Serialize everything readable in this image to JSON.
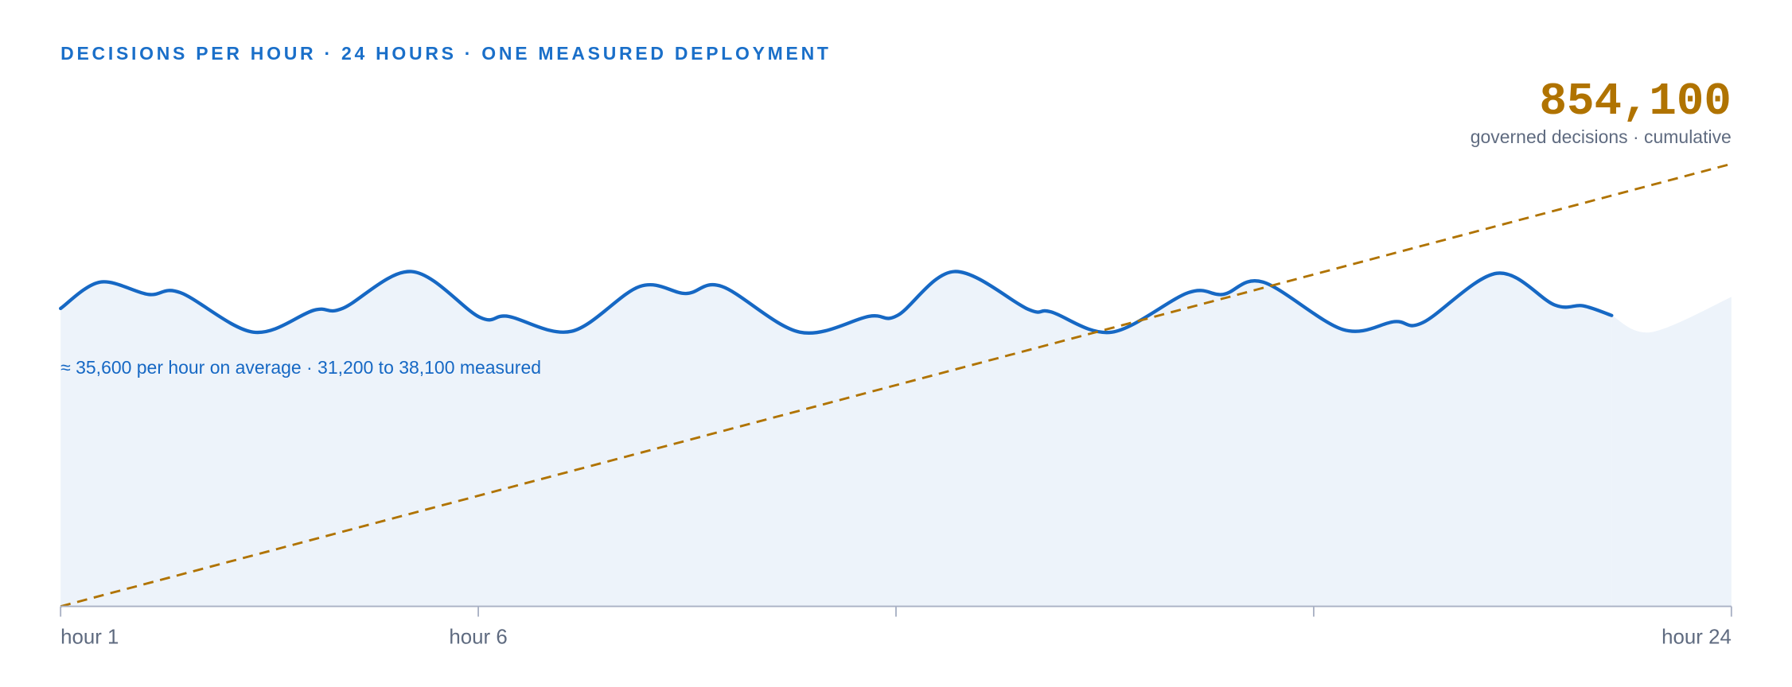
{
  "chart_data": {
    "type": "line",
    "title": "DECISIONS PER HOUR · 24 HOURS · ONE MEASURED DEPLOYMENT",
    "annotation": "≈ 35,600 per hour on average · 31,200 to 38,100 measured",
    "xlim": [
      0,
      24
    ],
    "xticks": [
      {
        "value": 0,
        "label": "hour 1"
      },
      {
        "value": 6,
        "label": "hour 6"
      },
      {
        "value": 12,
        "label": null
      },
      {
        "value": 18,
        "label": null
      },
      {
        "value": 24,
        "label": "hour 24"
      }
    ],
    "ylim": [
      0,
      56000
    ],
    "y2lim": [
      0,
      950000
    ],
    "series": [
      {
        "color": "#1668c4",
        "area_color": "#edf3fa",
        "line": true,
        "x": [
          0,
          0.57,
          1.26,
          1.72,
          2.77,
          3.64,
          4.05,
          5.04,
          6.02,
          6.43,
          7.34,
          8.32,
          8.98,
          9.5,
          10.62,
          11.61,
          12.02,
          12.84,
          13.9,
          14.23,
          15.1,
          16.2,
          16.7,
          17.27,
          18.42,
          19.16,
          19.57,
          20.63,
          21.46,
          21.87,
          22.28
        ],
        "values": [
          33900,
          36900,
          35500,
          35700,
          31200,
          33700,
          33900,
          38100,
          32900,
          33000,
          31300,
          36400,
          35600,
          36400,
          31200,
          33000,
          33100,
          38100,
          33800,
          33500,
          31200,
          35700,
          35500,
          36900,
          31500,
          32400,
          32300,
          37900,
          34300,
          34200,
          33100
        ]
      },
      {
        "name": "governed decisions · cumulative",
        "color": "#b07300",
        "axis": "y2",
        "dashed": true,
        "line": true,
        "x": [
          0,
          24
        ],
        "values": [
          0,
          854100
        ],
        "value_labels": [
          null,
          "854,100"
        ]
      },
      {
        "area_color": "#edf3fa",
        "line": false,
        "x": [
          22.28,
          22.85,
          24
        ],
        "values": [
          33100,
          31200,
          35200
        ]
      }
    ]
  }
}
